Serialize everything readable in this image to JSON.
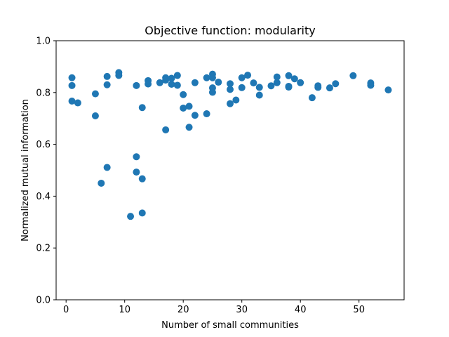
{
  "chart_data": {
    "type": "scatter",
    "title": "Objective function: modularity",
    "xlabel": "Number of small communities",
    "ylabel": "Normalized mutual information",
    "xlim": [
      -1.7,
      57.7
    ],
    "ylim": [
      0.0,
      1.0
    ],
    "xticks": [
      0,
      10,
      20,
      30,
      40,
      50
    ],
    "yticks": [
      0.0,
      0.2,
      0.4,
      0.6,
      0.8,
      1.0
    ],
    "xtick_labels": [
      "0",
      "10",
      "20",
      "30",
      "40",
      "50"
    ],
    "ytick_labels": [
      "0.0",
      "0.2",
      "0.4",
      "0.6",
      "0.8",
      "1.0"
    ],
    "grid": false,
    "legend": "none",
    "marker_color": "#1f77b4",
    "points": [
      [
        1,
        0.857
      ],
      [
        1,
        0.827
      ],
      [
        1,
        0.767
      ],
      [
        2,
        0.76
      ],
      [
        5,
        0.795
      ],
      [
        5,
        0.71
      ],
      [
        6,
        0.45
      ],
      [
        7,
        0.862
      ],
      [
        7,
        0.83
      ],
      [
        7,
        0.511
      ],
      [
        9,
        0.877
      ],
      [
        9,
        0.866
      ],
      [
        11,
        0.322
      ],
      [
        12,
        0.827
      ],
      [
        12,
        0.552
      ],
      [
        12,
        0.493
      ],
      [
        13,
        0.742
      ],
      [
        13,
        0.467
      ],
      [
        13,
        0.335
      ],
      [
        14,
        0.846
      ],
      [
        14,
        0.833
      ],
      [
        16,
        0.838
      ],
      [
        17,
        0.857
      ],
      [
        17,
        0.848
      ],
      [
        17,
        0.656
      ],
      [
        18,
        0.855
      ],
      [
        18,
        0.832
      ],
      [
        19,
        0.866
      ],
      [
        19,
        0.828
      ],
      [
        20,
        0.792
      ],
      [
        20,
        0.74
      ],
      [
        21,
        0.747
      ],
      [
        21,
        0.666
      ],
      [
        22,
        0.838
      ],
      [
        22,
        0.712
      ],
      [
        24,
        0.857
      ],
      [
        24,
        0.718
      ],
      [
        25,
        0.871
      ],
      [
        25,
        0.857
      ],
      [
        25,
        0.818
      ],
      [
        25,
        0.801
      ],
      [
        26,
        0.84
      ],
      [
        28,
        0.834
      ],
      [
        28,
        0.812
      ],
      [
        28,
        0.757
      ],
      [
        29,
        0.771
      ],
      [
        30,
        0.857
      ],
      [
        30,
        0.819
      ],
      [
        31,
        0.867
      ],
      [
        32,
        0.837
      ],
      [
        33,
        0.82
      ],
      [
        33,
        0.79
      ],
      [
        35,
        0.826
      ],
      [
        36,
        0.86
      ],
      [
        36,
        0.838
      ],
      [
        38,
        0.865
      ],
      [
        38,
        0.824
      ],
      [
        38,
        0.821
      ],
      [
        39,
        0.853
      ],
      [
        40,
        0.838
      ],
      [
        42,
        0.78
      ],
      [
        43,
        0.826
      ],
      [
        43,
        0.82
      ],
      [
        45,
        0.818
      ],
      [
        46,
        0.834
      ],
      [
        49,
        0.865
      ],
      [
        52,
        0.837
      ],
      [
        52,
        0.828
      ],
      [
        55,
        0.81
      ]
    ]
  }
}
